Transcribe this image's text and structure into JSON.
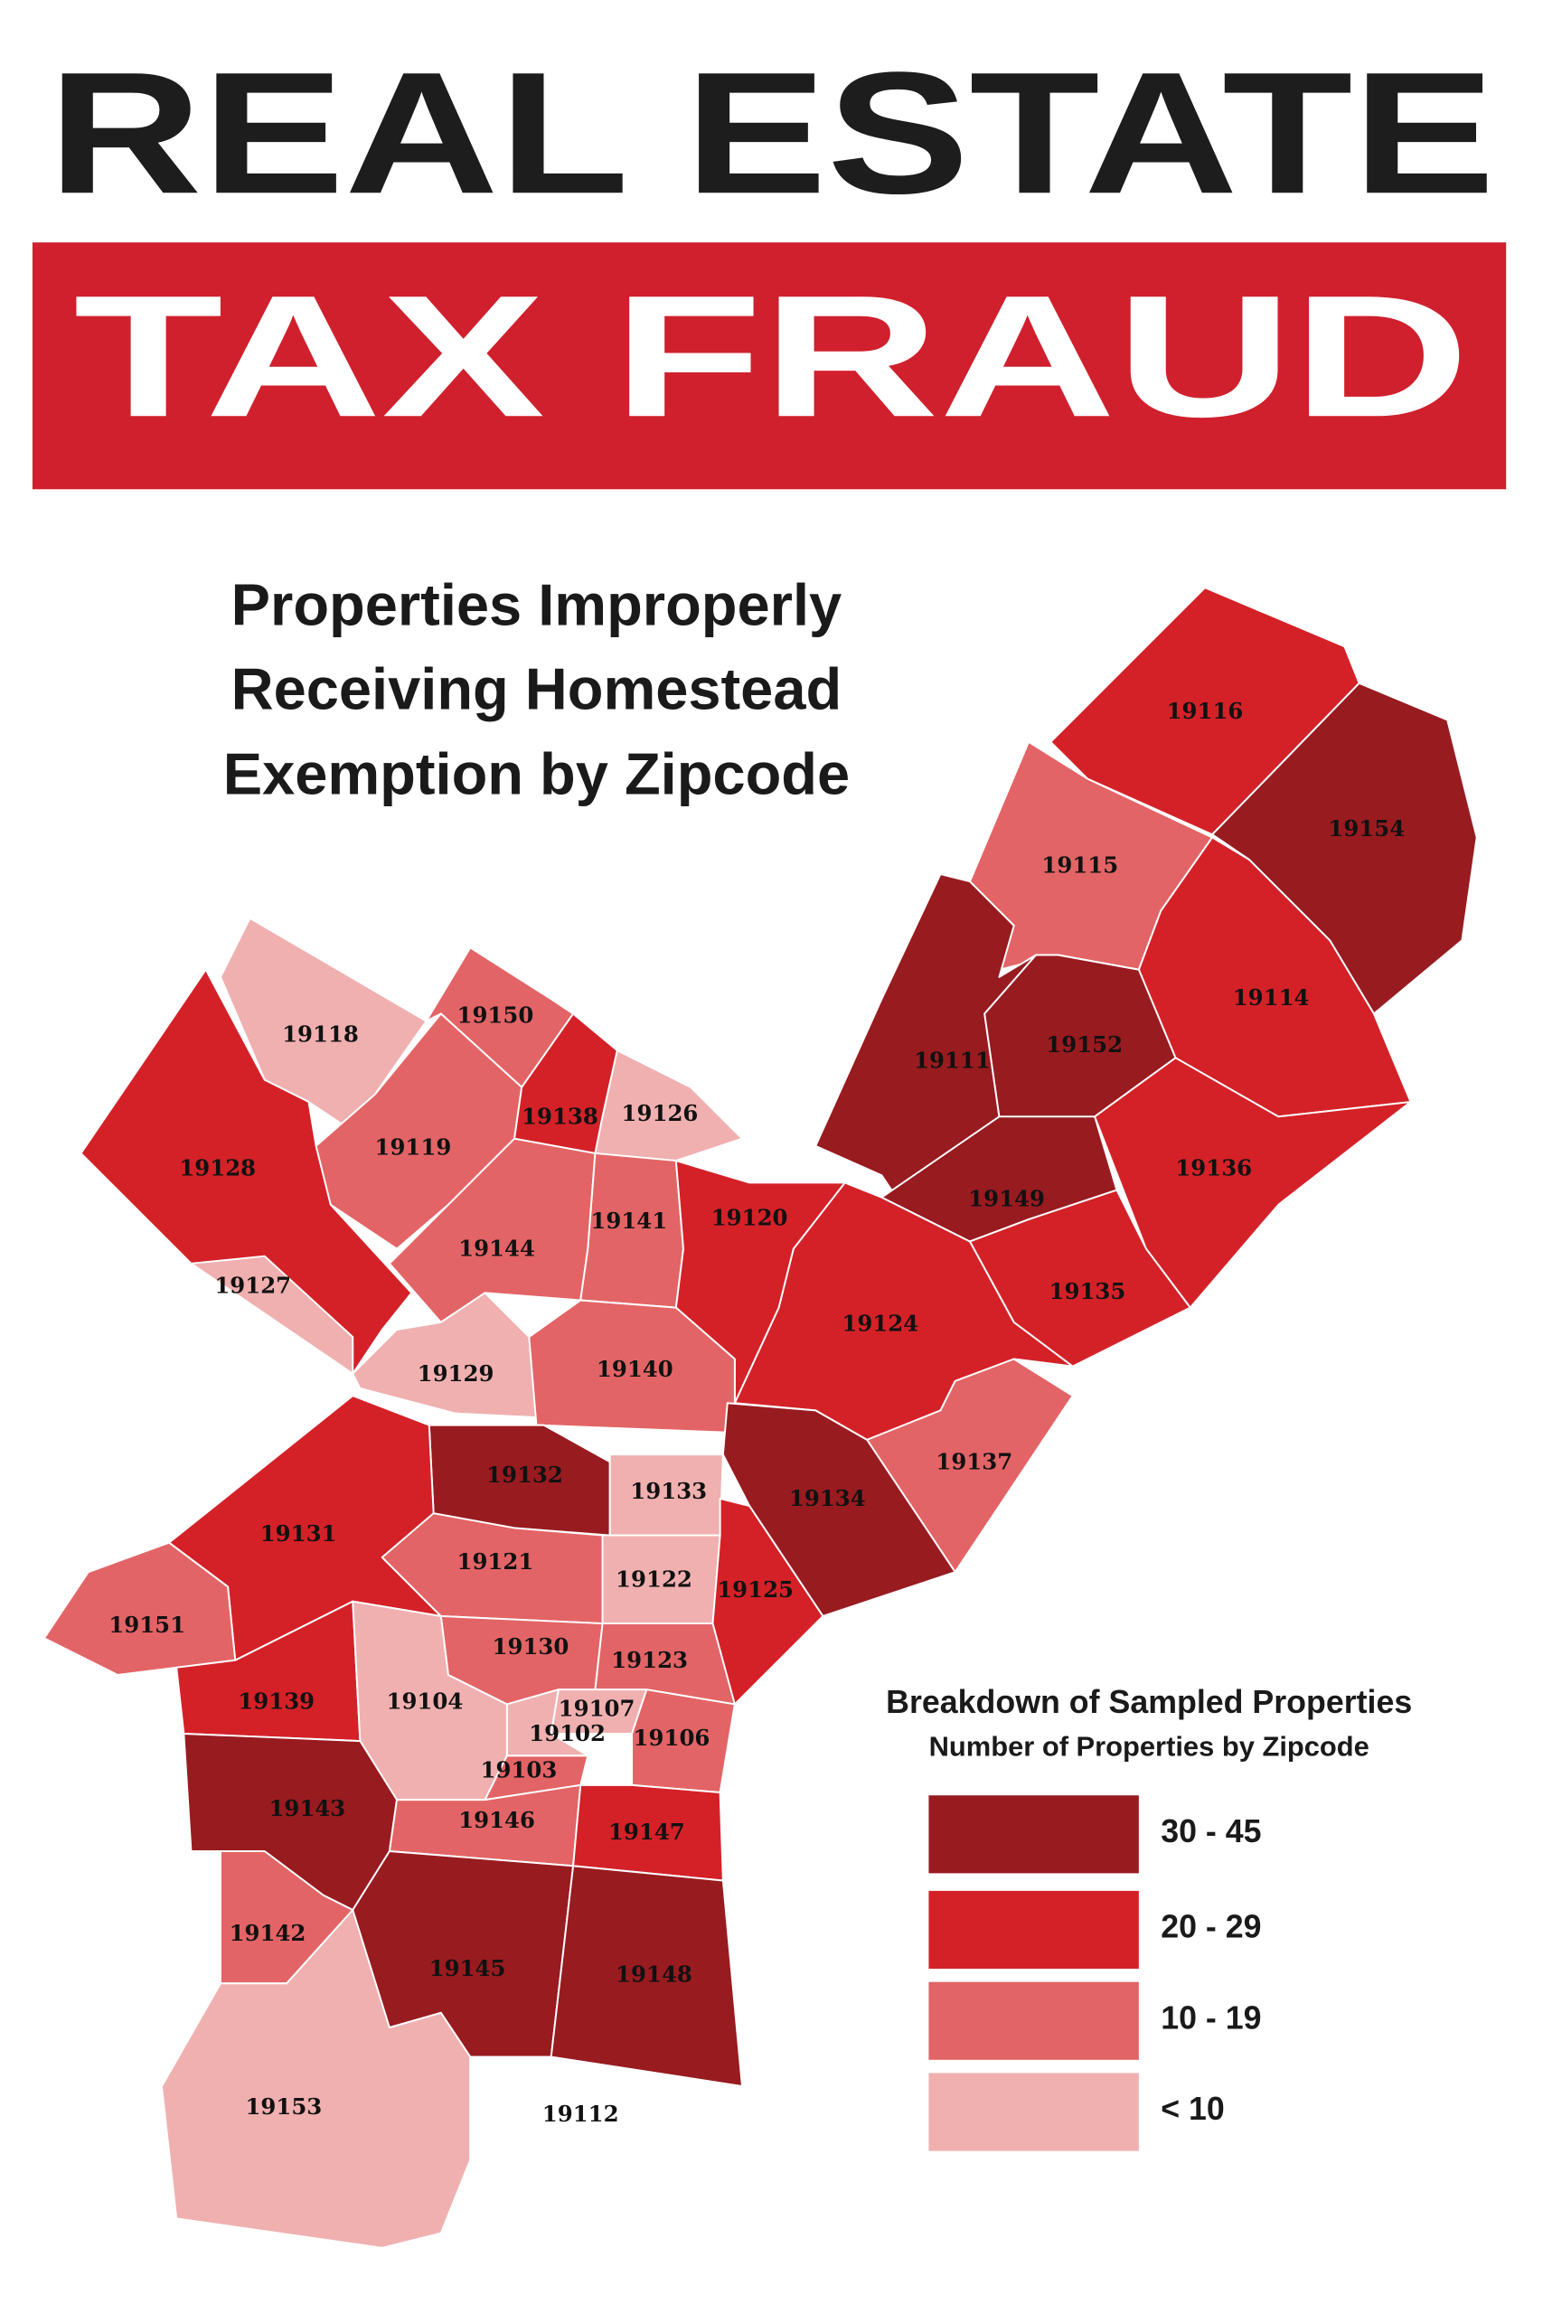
{
  "header": {
    "title_line1": "REAL ESTATE",
    "title_line2": "TAX FRAUD",
    "subtitle": [
      "Properties Improperly",
      "Receiving Homestead",
      "Exemption by Zipcode"
    ]
  },
  "map": {
    "regions": [
      {
        "zip": "19116",
        "level": 1
      },
      {
        "zip": "19154",
        "level": 0
      },
      {
        "zip": "19115",
        "level": 2
      },
      {
        "zip": "19114",
        "level": 1
      },
      {
        "zip": "19111",
        "level": 0
      },
      {
        "zip": "19152",
        "level": 0
      },
      {
        "zip": "19136",
        "level": 1
      },
      {
        "zip": "19149",
        "level": 0
      },
      {
        "zip": "19135",
        "level": 1
      },
      {
        "zip": "19118",
        "level": 3
      },
      {
        "zip": "19150",
        "level": 2
      },
      {
        "zip": "19128",
        "level": 1
      },
      {
        "zip": "19119",
        "level": 2
      },
      {
        "zip": "19138",
        "level": 1
      },
      {
        "zip": "19126",
        "level": 3
      },
      {
        "zip": "19144",
        "level": 2
      },
      {
        "zip": "19141",
        "level": 2
      },
      {
        "zip": "19120",
        "level": 1
      },
      {
        "zip": "19127",
        "level": 3
      },
      {
        "zip": "19129",
        "level": 3
      },
      {
        "zip": "19140",
        "level": 2
      },
      {
        "zip": "19124",
        "level": 1
      },
      {
        "zip": "19137",
        "level": 2
      },
      {
        "zip": "19132",
        "level": 0
      },
      {
        "zip": "19133",
        "level": 3
      },
      {
        "zip": "19134",
        "level": 0
      },
      {
        "zip": "19131",
        "level": 1
      },
      {
        "zip": "19121",
        "level": 2
      },
      {
        "zip": "19122",
        "level": 3
      },
      {
        "zip": "19125",
        "level": 1
      },
      {
        "zip": "19151",
        "level": 2
      },
      {
        "zip": "19130",
        "level": 2
      },
      {
        "zip": "19123",
        "level": 2
      },
      {
        "zip": "19139",
        "level": 1
      },
      {
        "zip": "19104",
        "level": 3
      },
      {
        "zip": "19107",
        "level": 3
      },
      {
        "zip": "19102",
        "level": 3
      },
      {
        "zip": "19106",
        "level": 2
      },
      {
        "zip": "19103",
        "level": 2
      },
      {
        "zip": "19143",
        "level": 0
      },
      {
        "zip": "19146",
        "level": 2
      },
      {
        "zip": "19147",
        "level": 1
      },
      {
        "zip": "19142",
        "level": 2
      },
      {
        "zip": "19145",
        "level": 0
      },
      {
        "zip": "19148",
        "level": 0
      },
      {
        "zip": "19153",
        "level": 3
      },
      {
        "zip": "19112",
        "level": null
      }
    ]
  },
  "legend": {
    "title": "Breakdown of Sampled Properties",
    "subtitle": "Number of Properties by Zipcode",
    "items": [
      {
        "label": "30 - 45",
        "color": "#981b20"
      },
      {
        "label": "20 - 29",
        "color": "#d42128"
      },
      {
        "label": "10 - 19",
        "color": "#e36466"
      },
      {
        "label": "< 10",
        "color": "#f0b0b0"
      }
    ]
  }
}
